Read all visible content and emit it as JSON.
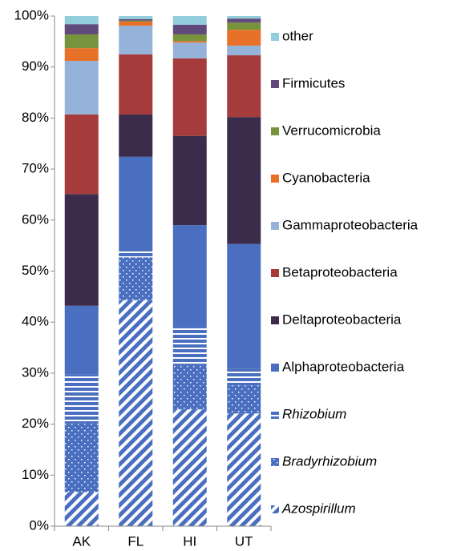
{
  "chart_data": {
    "type": "stacked_bar",
    "categories": [
      "AK",
      "FL",
      "HI",
      "UT"
    ],
    "ylim": [
      0,
      100
    ],
    "yticks": [
      {
        "value": 0,
        "label": "0%"
      },
      {
        "value": 10,
        "label": "10%"
      },
      {
        "value": 20,
        "label": "20%"
      },
      {
        "value": 30,
        "label": "30%"
      },
      {
        "value": 40,
        "label": "40%"
      },
      {
        "value": 50,
        "label": "50%"
      },
      {
        "value": 60,
        "label": "60%"
      },
      {
        "value": 70,
        "label": "70%"
      },
      {
        "value": 80,
        "label": "80%"
      },
      {
        "value": 90,
        "label": "90%"
      },
      {
        "value": 100,
        "label": "100%"
      }
    ],
    "grid": false,
    "legend": "right",
    "series": [
      {
        "name": "Azospirillum",
        "color": "#4a6fc0",
        "pattern": "diagonal",
        "style": "italic",
        "values": [
          6.7,
          44.3,
          22.9,
          22.1
        ]
      },
      {
        "name": "Bradyrhizobium",
        "color": "#4a6fc0",
        "pattern": "dots",
        "style": "italic",
        "values": [
          13.4,
          8.4,
          8.7,
          5.5
        ]
      },
      {
        "name": "Rhizobium",
        "color": "#4a6fc0",
        "pattern": "horizontal",
        "style": "italic",
        "values": [
          9.6,
          1.3,
          7.5,
          3.2
        ]
      },
      {
        "name": "Alphaproteobacteria",
        "color": "#4a6fc0",
        "values": [
          13.5,
          18.4,
          19.9,
          24.5
        ]
      },
      {
        "name": "Deltaproteobacteria",
        "color": "#3b2c4c",
        "values": [
          21.9,
          8.3,
          17.5,
          24.9
        ]
      },
      {
        "name": "Betaproteobacteria",
        "color": "#a53b3a",
        "values": [
          15.6,
          11.8,
          15.2,
          12.1
        ]
      },
      {
        "name": "Gammaproteobacteria",
        "color": "#95b3d9",
        "values": [
          10.5,
          5.6,
          3.1,
          1.9
        ]
      },
      {
        "name": "Cyanobacteria",
        "color": "#e8712a",
        "values": [
          2.5,
          0.8,
          0.3,
          3.1
        ]
      },
      {
        "name": "Verrucomicrobia",
        "color": "#77933c",
        "values": [
          2.7,
          0.2,
          1.3,
          1.4
        ]
      },
      {
        "name": "Firmicutes",
        "color": "#604a7b",
        "values": [
          2.0,
          0.3,
          1.9,
          0.8
        ]
      },
      {
        "name": "other",
        "color": "#92cddc",
        "values": [
          1.6,
          0.6,
          1.7,
          0.5
        ]
      }
    ]
  }
}
